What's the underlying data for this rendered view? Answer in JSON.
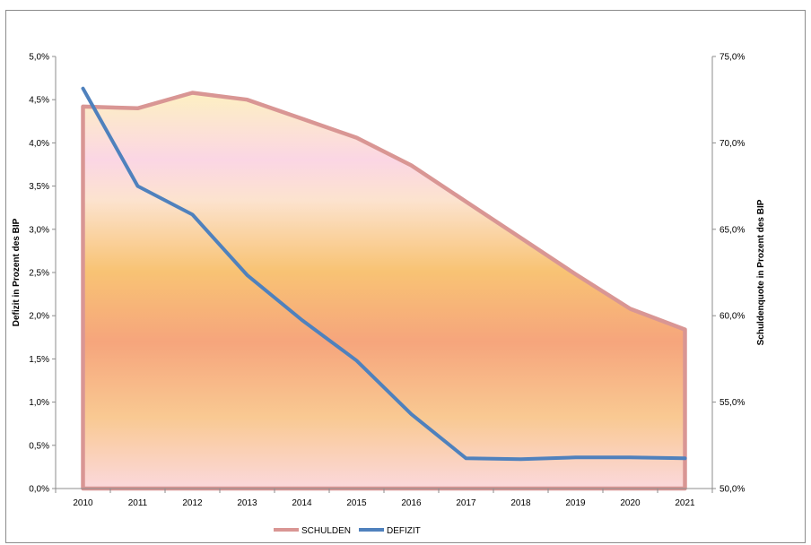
{
  "chart_data": {
    "type": "area",
    "categories": [
      "2010",
      "2011",
      "2012",
      "2013",
      "2014",
      "2015",
      "2016",
      "2017",
      "2018",
      "2019",
      "2020",
      "2021"
    ],
    "y_left": {
      "label": "Defizit in Prozent des BIP",
      "range": [
        0,
        5
      ],
      "ticks": [
        0,
        0.5,
        1,
        1.5,
        2,
        2.5,
        3,
        3.5,
        4,
        4.5,
        5
      ],
      "tick_labels": [
        "0,0%",
        "0,5%",
        "1,0%",
        "1,5%",
        "2,0%",
        "2,5%",
        "3,0%",
        "3,5%",
        "4,0%",
        "4,5%",
        "5,0%"
      ]
    },
    "y_right": {
      "label": "Schuldenquote in Prozent des BIP",
      "range": [
        50,
        75
      ],
      "ticks": [
        50,
        55,
        60,
        65,
        70,
        75
      ],
      "tick_labels": [
        "50,0%",
        "55,0%",
        "60,0%",
        "65,0%",
        "70,0%",
        "75,0%"
      ]
    },
    "series": [
      {
        "name": "SCHULDEN",
        "type": "area",
        "axis": "right",
        "color": "#d99694",
        "values": [
          72.1,
          72.0,
          72.9,
          72.5,
          71.4,
          70.3,
          68.7,
          66.6,
          64.5,
          62.4,
          60.4,
          59.2
        ]
      },
      {
        "name": "DEFIZIT",
        "type": "line",
        "axis": "left",
        "color": "#4f81bd",
        "values": [
          4.63,
          3.5,
          3.17,
          2.47,
          1.95,
          1.48,
          0.86,
          0.35,
          0.34,
          0.36,
          0.36,
          0.35
        ]
      }
    ],
    "legend": {
      "position": "bottom",
      "items": [
        "SCHULDEN",
        "DEFIZIT"
      ]
    },
    "grid": false
  }
}
